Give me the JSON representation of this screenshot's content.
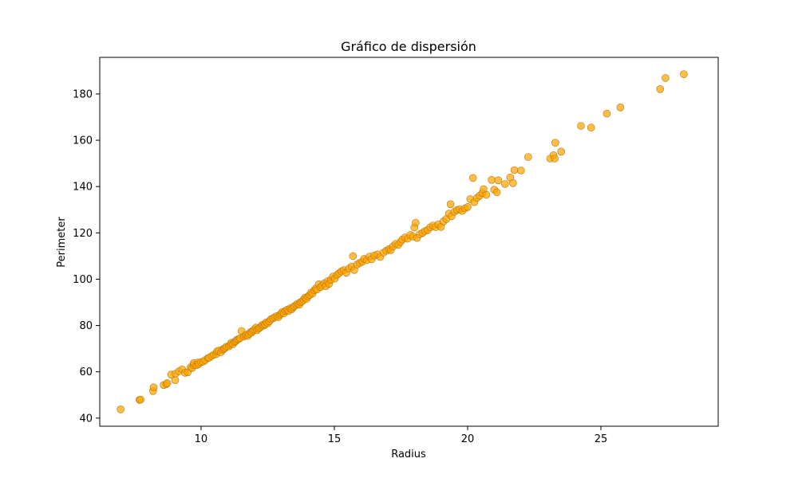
{
  "chart_data": {
    "type": "scatter",
    "title": "Gráfico de dispersión",
    "xlabel": "Radius",
    "ylabel": "Perimeter",
    "xlim": [
      6.2,
      29.4
    ],
    "ylim": [
      36.5,
      195.8
    ],
    "xticks": [
      10,
      15,
      20,
      25
    ],
    "yticks": [
      40,
      60,
      80,
      100,
      120,
      140,
      160,
      180
    ],
    "grid": false,
    "legend": "none",
    "marker_color": "#FFA500",
    "marker_edge_color": "#b5770f",
    "series": [
      {
        "points": [
          [
            6.98,
            43.8
          ],
          [
            7.69,
            47.9
          ],
          [
            7.73,
            48.0
          ],
          [
            8.2,
            51.7
          ],
          [
            8.22,
            53.3
          ],
          [
            8.6,
            54.3
          ],
          [
            8.7,
            54.7
          ],
          [
            8.73,
            55.1
          ],
          [
            8.88,
            58.8
          ],
          [
            9.03,
            56.4
          ],
          [
            9.04,
            59.2
          ],
          [
            9.17,
            60.2
          ],
          [
            9.29,
            61.1
          ],
          [
            9.4,
            59.6
          ],
          [
            9.5,
            59.8
          ],
          [
            9.61,
            62.0
          ],
          [
            9.67,
            61.7
          ],
          [
            9.72,
            63.0
          ],
          [
            9.73,
            63.8
          ],
          [
            9.83,
            62.9
          ],
          [
            9.88,
            64.0
          ],
          [
            9.92,
            63.4
          ],
          [
            10.0,
            64.2
          ],
          [
            10.08,
            64.4
          ],
          [
            10.16,
            65.1
          ],
          [
            10.26,
            65.9
          ],
          [
            10.3,
            66.1
          ],
          [
            10.4,
            66.8
          ],
          [
            10.48,
            67.4
          ],
          [
            10.57,
            67.6
          ],
          [
            10.6,
            68.8
          ],
          [
            10.66,
            69.1
          ],
          [
            10.75,
            68.5
          ],
          [
            10.8,
            69.6
          ],
          [
            10.86,
            69.9
          ],
          [
            10.9,
            70.3
          ],
          [
            10.95,
            70.9
          ],
          [
            11.04,
            71.0
          ],
          [
            11.1,
            71.7
          ],
          [
            11.13,
            72.5
          ],
          [
            11.2,
            72.0
          ],
          [
            11.26,
            72.9
          ],
          [
            11.3,
            73.2
          ],
          [
            11.34,
            73.8
          ],
          [
            11.4,
            74.1
          ],
          [
            11.46,
            74.5
          ],
          [
            11.52,
            77.6
          ],
          [
            11.6,
            75.2
          ],
          [
            11.66,
            75.7
          ],
          [
            11.71,
            76.0
          ],
          [
            11.76,
            75.5
          ],
          [
            11.8,
            76.4
          ],
          [
            11.86,
            77.2
          ],
          [
            11.9,
            77.0
          ],
          [
            11.95,
            77.8
          ],
          [
            12.0,
            78.3
          ],
          [
            12.06,
            79.1
          ],
          [
            12.1,
            78.0
          ],
          [
            12.15,
            78.6
          ],
          [
            12.2,
            79.0
          ],
          [
            12.26,
            79.6
          ],
          [
            12.3,
            80.3
          ],
          [
            12.36,
            80.0
          ],
          [
            12.4,
            80.5
          ],
          [
            12.45,
            81.4
          ],
          [
            12.5,
            81.0
          ],
          [
            12.56,
            81.8
          ],
          [
            12.62,
            82.7
          ],
          [
            12.7,
            83.1
          ],
          [
            12.76,
            83.5
          ],
          [
            12.83,
            84.0
          ],
          [
            12.9,
            83.6
          ],
          [
            12.95,
            84.5
          ],
          [
            13.0,
            85.1
          ],
          [
            13.05,
            85.8
          ],
          [
            13.11,
            85.3
          ],
          [
            13.17,
            86.3
          ],
          [
            13.23,
            86.8
          ],
          [
            13.28,
            86.2
          ],
          [
            13.34,
            87.4
          ],
          [
            13.4,
            87.0
          ],
          [
            13.45,
            87.8
          ],
          [
            13.5,
            88.3
          ],
          [
            13.57,
            88.9
          ],
          [
            13.63,
            89.4
          ],
          [
            13.69,
            89.0
          ],
          [
            13.74,
            90.1
          ],
          [
            13.8,
            90.5
          ],
          [
            13.85,
            91.2
          ],
          [
            13.9,
            92.0
          ],
          [
            13.96,
            91.5
          ],
          [
            14.02,
            92.6
          ],
          [
            14.08,
            93.2
          ],
          [
            14.13,
            94.3
          ],
          [
            14.18,
            93.8
          ],
          [
            14.25,
            95.2
          ],
          [
            14.3,
            96.0
          ],
          [
            14.35,
            95.5
          ],
          [
            14.42,
            97.8
          ],
          [
            14.48,
            96.6
          ],
          [
            14.55,
            97.4
          ],
          [
            14.62,
            98.2
          ],
          [
            14.68,
            97.0
          ],
          [
            14.74,
            99.1
          ],
          [
            14.8,
            98.0
          ],
          [
            14.87,
            99.7
          ],
          [
            14.95,
            101.2
          ],
          [
            15.02,
            100.3
          ],
          [
            15.1,
            101.9
          ],
          [
            15.18,
            102.6
          ],
          [
            15.26,
            103.4
          ],
          [
            15.35,
            103.9
          ],
          [
            15.45,
            102.8
          ],
          [
            15.55,
            104.6
          ],
          [
            15.65,
            105.4
          ],
          [
            15.7,
            110.0
          ],
          [
            15.75,
            104.0
          ],
          [
            15.85,
            106.3
          ],
          [
            15.95,
            107.0
          ],
          [
            16.05,
            107.5
          ],
          [
            16.12,
            108.8
          ],
          [
            16.22,
            108.2
          ],
          [
            16.32,
            109.8
          ],
          [
            16.4,
            108.6
          ],
          [
            16.5,
            110.2
          ],
          [
            16.62,
            110.7
          ],
          [
            16.72,
            109.6
          ],
          [
            16.85,
            111.5
          ],
          [
            16.95,
            112.3
          ],
          [
            17.05,
            113.0
          ],
          [
            17.12,
            112.6
          ],
          [
            17.2,
            114.2
          ],
          [
            17.3,
            115.3
          ],
          [
            17.4,
            114.8
          ],
          [
            17.48,
            116.0
          ],
          [
            17.55,
            117.1
          ],
          [
            17.65,
            118.0
          ],
          [
            17.75,
            117.5
          ],
          [
            17.85,
            119.1
          ],
          [
            17.95,
            118.4
          ],
          [
            18.0,
            122.3
          ],
          [
            18.05,
            124.4
          ],
          [
            18.1,
            117.8
          ],
          [
            18.2,
            119.4
          ],
          [
            18.31,
            120.0
          ],
          [
            18.4,
            120.8
          ],
          [
            18.5,
            121.2
          ],
          [
            18.6,
            122.4
          ],
          [
            18.7,
            123.2
          ],
          [
            18.8,
            122.5
          ],
          [
            18.9,
            123.6
          ],
          [
            19.0,
            122.6
          ],
          [
            19.1,
            125.0
          ],
          [
            19.2,
            126.0
          ],
          [
            19.3,
            128.3
          ],
          [
            19.36,
            132.4
          ],
          [
            19.4,
            127.2
          ],
          [
            19.5,
            129.1
          ],
          [
            19.6,
            129.8
          ],
          [
            19.7,
            130.2
          ],
          [
            19.8,
            129.5
          ],
          [
            19.9,
            130.6
          ],
          [
            20.0,
            131.2
          ],
          [
            20.1,
            134.6
          ],
          [
            20.2,
            143.7
          ],
          [
            20.25,
            133.3
          ],
          [
            20.35,
            135.1
          ],
          [
            20.45,
            136.0
          ],
          [
            20.55,
            137.2
          ],
          [
            20.6,
            138.9
          ],
          [
            20.7,
            136.4
          ],
          [
            20.9,
            142.9
          ],
          [
            21.0,
            138.6
          ],
          [
            21.1,
            137.5
          ],
          [
            21.15,
            142.7
          ],
          [
            21.4,
            141.1
          ],
          [
            21.6,
            143.9
          ],
          [
            21.7,
            141.5
          ],
          [
            21.75,
            147.1
          ],
          [
            22.0,
            146.9
          ],
          [
            22.27,
            152.8
          ],
          [
            23.1,
            152.1
          ],
          [
            23.22,
            153.5
          ],
          [
            23.27,
            152.1
          ],
          [
            23.29,
            158.9
          ],
          [
            23.51,
            155.1
          ],
          [
            24.25,
            166.2
          ],
          [
            24.63,
            165.5
          ],
          [
            25.22,
            171.5
          ],
          [
            25.73,
            174.2
          ],
          [
            27.22,
            182.1
          ],
          [
            27.42,
            186.9
          ],
          [
            28.11,
            188.5
          ]
        ]
      }
    ]
  }
}
